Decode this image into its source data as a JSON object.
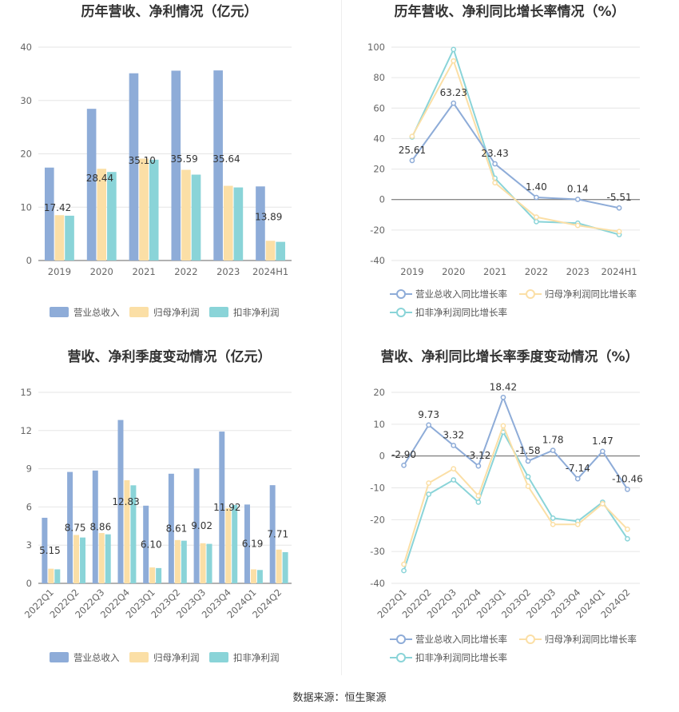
{
  "chart_data": [
    {
      "id": "annual-bar",
      "type": "bar",
      "title": "历年营收、净利情况（亿元）",
      "categories": [
        "2019",
        "2020",
        "2021",
        "2022",
        "2023",
        "2024H1"
      ],
      "ylim": [
        0,
        40
      ],
      "yticks": [
        0,
        10,
        20,
        30,
        40
      ],
      "series": [
        {
          "name": "营业总收入",
          "color": "#8eacd8",
          "values": [
            17.42,
            28.44,
            35.1,
            35.59,
            35.64,
            13.89
          ]
        },
        {
          "name": "归母净利润",
          "color": "#fbdfa6",
          "values": [
            8.5,
            17.2,
            19.1,
            17.0,
            14.0,
            3.7
          ]
        },
        {
          "name": "扣非净利润",
          "color": "#8ad4d8",
          "values": [
            8.4,
            16.6,
            18.9,
            16.1,
            13.7,
            3.5
          ]
        }
      ],
      "data_labels": [
        "17.42",
        "28.44",
        "35.10",
        "35.59",
        "35.64",
        "13.89"
      ],
      "legend": "bottom",
      "grid": true
    },
    {
      "id": "annual-line",
      "type": "line",
      "title": "历年营收、净利同比增长率情况（%）",
      "categories": [
        "2019",
        "2020",
        "2021",
        "2022",
        "2023",
        "2024H1"
      ],
      "ylim": [
        -40,
        100
      ],
      "yticks": [
        -40,
        -20,
        0,
        20,
        40,
        60,
        80,
        100
      ],
      "series": [
        {
          "name": "营业总收入同比增长率",
          "color": "#8eacd8",
          "values": [
            25.61,
            63.23,
            23.43,
            1.4,
            0.14,
            -5.51
          ]
        },
        {
          "name": "归母净利润同比增长率",
          "color": "#fbdfa6",
          "values": [
            41.5,
            91.0,
            11.0,
            -11.5,
            -17.0,
            -21.0
          ]
        },
        {
          "name": "扣非净利润同比增长率",
          "color": "#8ad4d8",
          "values": [
            41.0,
            98.5,
            14.0,
            -14.5,
            -15.5,
            -23.0
          ]
        }
      ],
      "data_labels": [
        "25.61",
        "63.23",
        "23.43",
        "1.40",
        "0.14",
        "-5.51"
      ],
      "legend": "bottom",
      "grid": true
    },
    {
      "id": "quarter-bar",
      "type": "bar",
      "title": "营收、净利季度变动情况（亿元）",
      "categories": [
        "2022Q1",
        "2022Q2",
        "2022Q3",
        "2022Q4",
        "2023Q1",
        "2023Q2",
        "2023Q3",
        "2023Q4",
        "2024Q1",
        "2024Q2"
      ],
      "ylim": [
        0,
        15
      ],
      "yticks": [
        0,
        3,
        6,
        9,
        12,
        15
      ],
      "series": [
        {
          "name": "营业总收入",
          "color": "#8eacd8",
          "values": [
            5.15,
            8.75,
            8.86,
            12.83,
            6.1,
            8.61,
            9.02,
            11.92,
            6.19,
            7.71
          ]
        },
        {
          "name": "归母净利润",
          "color": "#fbdfa6",
          "values": [
            1.15,
            3.8,
            3.95,
            8.1,
            1.25,
            3.4,
            3.15,
            5.9,
            1.1,
            2.65
          ]
        },
        {
          "name": "扣非净利润",
          "color": "#8ad4d8",
          "values": [
            1.1,
            3.6,
            3.85,
            7.7,
            1.2,
            3.35,
            3.1,
            6.15,
            1.05,
            2.45
          ]
        }
      ],
      "data_labels": [
        "5.15",
        "8.75",
        "8.86",
        "12.83",
        "6.10",
        "8.61",
        "9.02",
        "11.92",
        "6.19",
        "7.71"
      ],
      "legend": "bottom",
      "grid": true
    },
    {
      "id": "quarter-line",
      "type": "line",
      "title": "营收、净利同比增长率季度变动情况（%）",
      "categories": [
        "2022Q1",
        "2022Q2",
        "2022Q3",
        "2022Q4",
        "2023Q1",
        "2023Q2",
        "2023Q3",
        "2023Q4",
        "2024Q1",
        "2024Q2"
      ],
      "ylim": [
        -40,
        20
      ],
      "yticks": [
        -40,
        -30,
        -20,
        -10,
        0,
        10,
        20
      ],
      "series": [
        {
          "name": "营业总收入同比增长率",
          "color": "#8eacd8",
          "values": [
            -2.9,
            9.73,
            3.32,
            -3.12,
            18.42,
            -1.58,
            1.78,
            -7.14,
            1.47,
            -10.46
          ]
        },
        {
          "name": "归母净利润同比增长率",
          "color": "#fbdfa6",
          "values": [
            -34.0,
            -8.5,
            -4.0,
            -12.5,
            9.5,
            -9.5,
            -21.5,
            -21.5,
            -15.0,
            -23.0
          ]
        },
        {
          "name": "扣非净利润同比增长率",
          "color": "#8ad4d8",
          "values": [
            -36.0,
            -12.0,
            -7.5,
            -14.5,
            7.5,
            -6.5,
            -19.5,
            -20.5,
            -14.5,
            -26.0
          ]
        }
      ],
      "data_labels": [
        "-2.90",
        "9.73",
        "3.32",
        "-3.12",
        "18.42",
        "-1.58",
        "1.78",
        "-7.14",
        "1.47",
        "-10.46"
      ],
      "legend": "bottom",
      "grid": true
    }
  ],
  "footer": {
    "source": "数据来源：恒生聚源"
  }
}
